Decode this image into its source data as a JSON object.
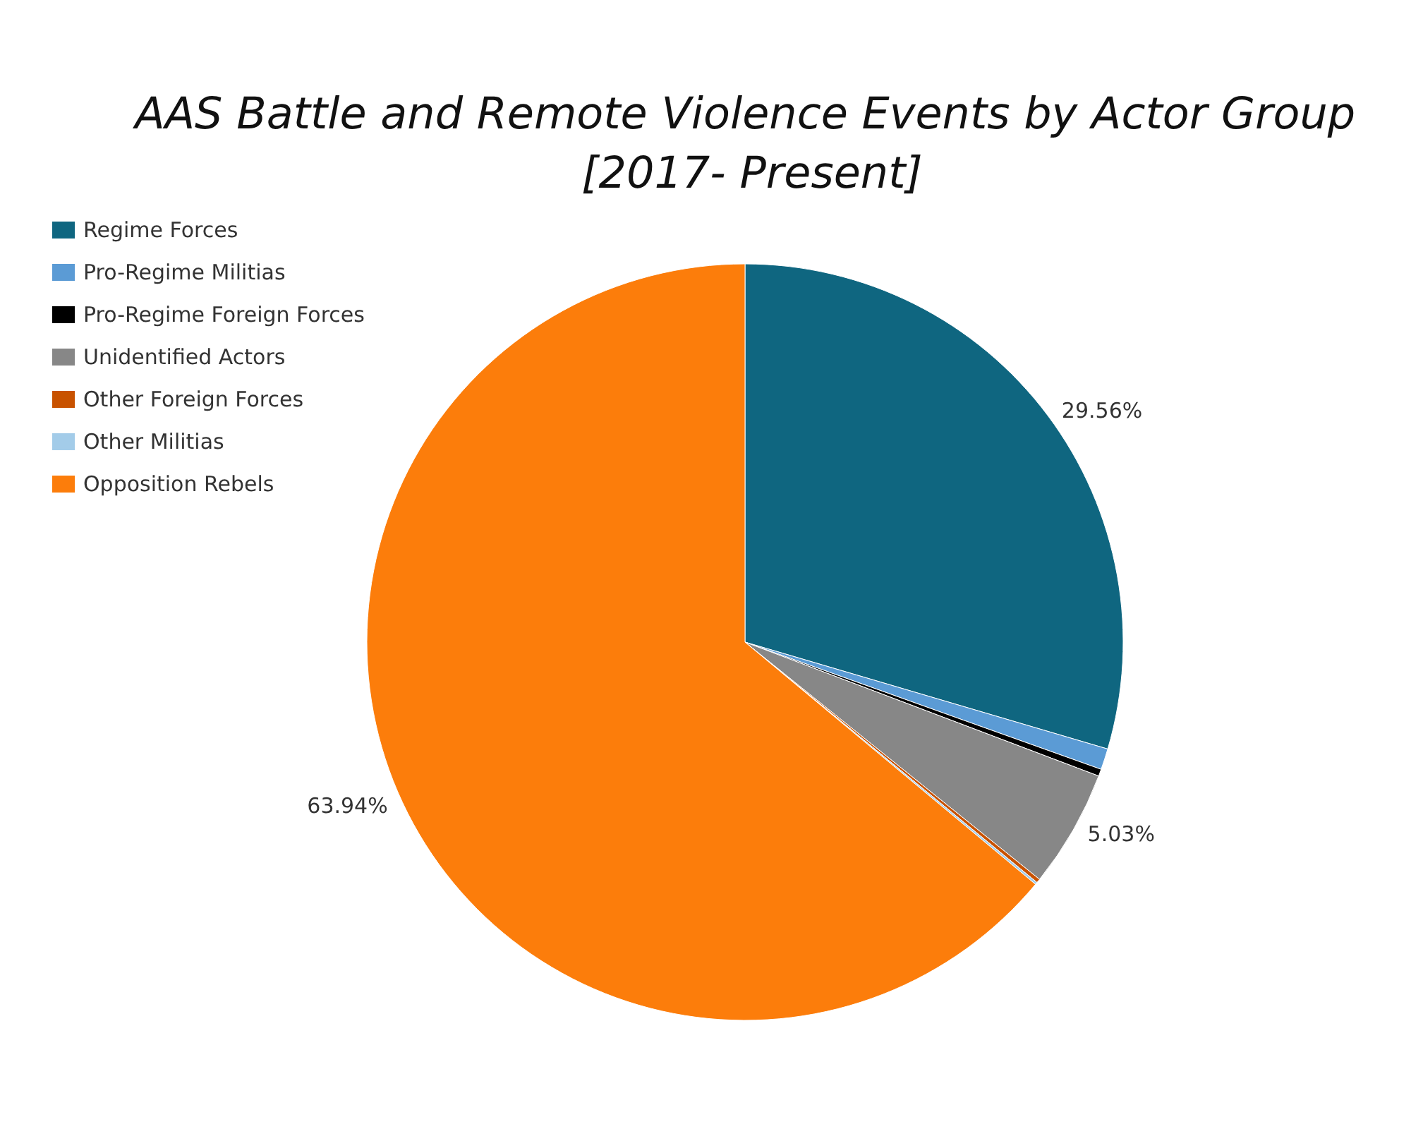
{
  "chart_data": {
    "type": "pie",
    "title": "AAS Battle and Remote Violence Events by Actor Group [2017- Present]",
    "categories": [
      "Regime Forces",
      "Pro-Regime Militias",
      "Pro-Regime Foreign Forces",
      "Unidentified Actors",
      "Other Foreign Forces",
      "Other Militias",
      "Opposition Rebels"
    ],
    "values": [
      29.56,
      0.9,
      0.3,
      5.03,
      0.17,
      0.1,
      63.94
    ],
    "colors": [
      "#0f6680",
      "#5b9bd5",
      "#000000",
      "#878787",
      "#c85200",
      "#a3cce9",
      "#fc7d0b"
    ],
    "value_labels": [
      "29.56%",
      null,
      null,
      "5.03%",
      null,
      null,
      "63.94%"
    ],
    "legend": "top left"
  }
}
